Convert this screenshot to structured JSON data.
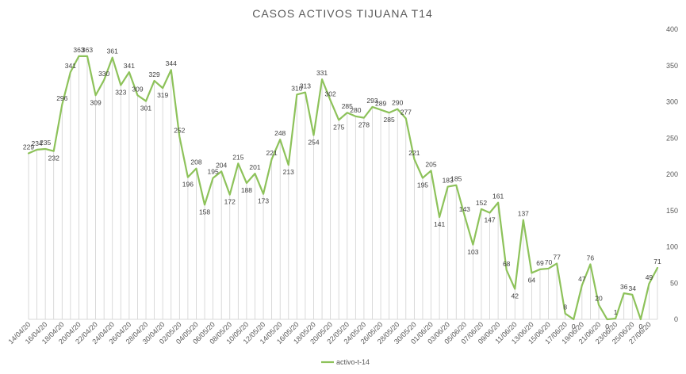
{
  "chart_data": {
    "type": "line",
    "title": "CASOS  ACTIVOS TIJUANA T14",
    "xlabel": "",
    "ylabel": "",
    "ylim": [
      0,
      400
    ],
    "yticks": [
      0,
      50,
      100,
      150,
      200,
      250,
      300,
      350,
      400
    ],
    "y_axis_side": "right",
    "grid": false,
    "legend": "bottom",
    "line_color": "#8DC25A",
    "x": [
      "14/04/20",
      "15/04/20",
      "16/04/20",
      "17/04/20",
      "18/04/20",
      "19/04/20",
      "20/04/20",
      "21/04/20",
      "22/04/20",
      "23/04/20",
      "24/04/20",
      "25/04/20",
      "26/04/20",
      "27/04/20",
      "28/04/20",
      "29/04/20",
      "30/04/20",
      "01/05/20",
      "02/05/20",
      "03/05/20",
      "04/05/20",
      "05/05/20",
      "06/05/20",
      "07/05/20",
      "08/05/20",
      "09/05/20",
      "10/05/20",
      "11/05/20",
      "12/05/20",
      "13/05/20",
      "14/05/20",
      "15/05/20",
      "16/05/20",
      "17/05/20",
      "18/05/20",
      "19/05/20",
      "20/05/20",
      "21/05/20",
      "22/05/20",
      "23/05/20",
      "24/05/20",
      "25/05/20",
      "26/05/20",
      "27/05/20",
      "28/05/20",
      "29/05/20",
      "30/05/20",
      "31/05/20",
      "01/06/20",
      "02/06/20",
      "03/06/20",
      "04/06/20",
      "05/06/20",
      "06/06/20",
      "07/06/20",
      "08/06/20",
      "09/06/20",
      "10/06/20",
      "11/06/20",
      "12/06/20",
      "13/06/20",
      "14/06/20",
      "15/06/20",
      "16/06/20",
      "17/06/20",
      "18/06/20",
      "19/06/20",
      "20/06/20",
      "21/06/20",
      "22/06/20",
      "23/06/20",
      "24/06/20",
      "25/06/20",
      "26/06/20",
      "27/06/20",
      "28/06/20"
    ],
    "x_tick_labels": [
      "14/04/20",
      "16/04/20",
      "18/04/20",
      "20/04/20",
      "22/04/20",
      "24/04/20",
      "26/04/20",
      "28/04/20",
      "30/04/20",
      "02/05/20",
      "04/05/20",
      "06/05/20",
      "08/05/20",
      "10/05/20",
      "12/05/20",
      "14/05/20",
      "16/05/20",
      "18/05/20",
      "20/05/20",
      "22/05/20",
      "24/05/20",
      "26/05/20",
      "28/05/20",
      "30/05/20",
      "01/06/20",
      "03/06/20",
      "05/06/20",
      "07/06/20",
      "09/06/20",
      "11/06/20",
      "13/06/20",
      "15/06/20",
      "17/06/20",
      "19/06/20",
      "21/06/20",
      "23/06/20",
      "25/06/20",
      "27/06/20"
    ],
    "series": [
      {
        "name": "activo-t-14",
        "values": [
          229,
          234,
          235,
          232,
          296,
          341,
          363,
          363,
          309,
          330,
          361,
          323,
          341,
          309,
          301,
          329,
          319,
          344,
          252,
          196,
          208,
          158,
          195,
          204,
          172,
          215,
          188,
          201,
          173,
          221,
          248,
          213,
          310,
          313,
          254,
          331,
          302,
          275,
          285,
          280,
          278,
          293,
          289,
          285,
          290,
          277,
          221,
          195,
          205,
          141,
          183,
          185,
          143,
          103,
          152,
          147,
          161,
          68,
          42,
          137,
          64,
          69,
          70,
          77,
          8,
          0,
          47,
          76,
          20,
          0,
          1,
          36,
          34,
          0,
          49,
          71
        ]
      }
    ]
  }
}
